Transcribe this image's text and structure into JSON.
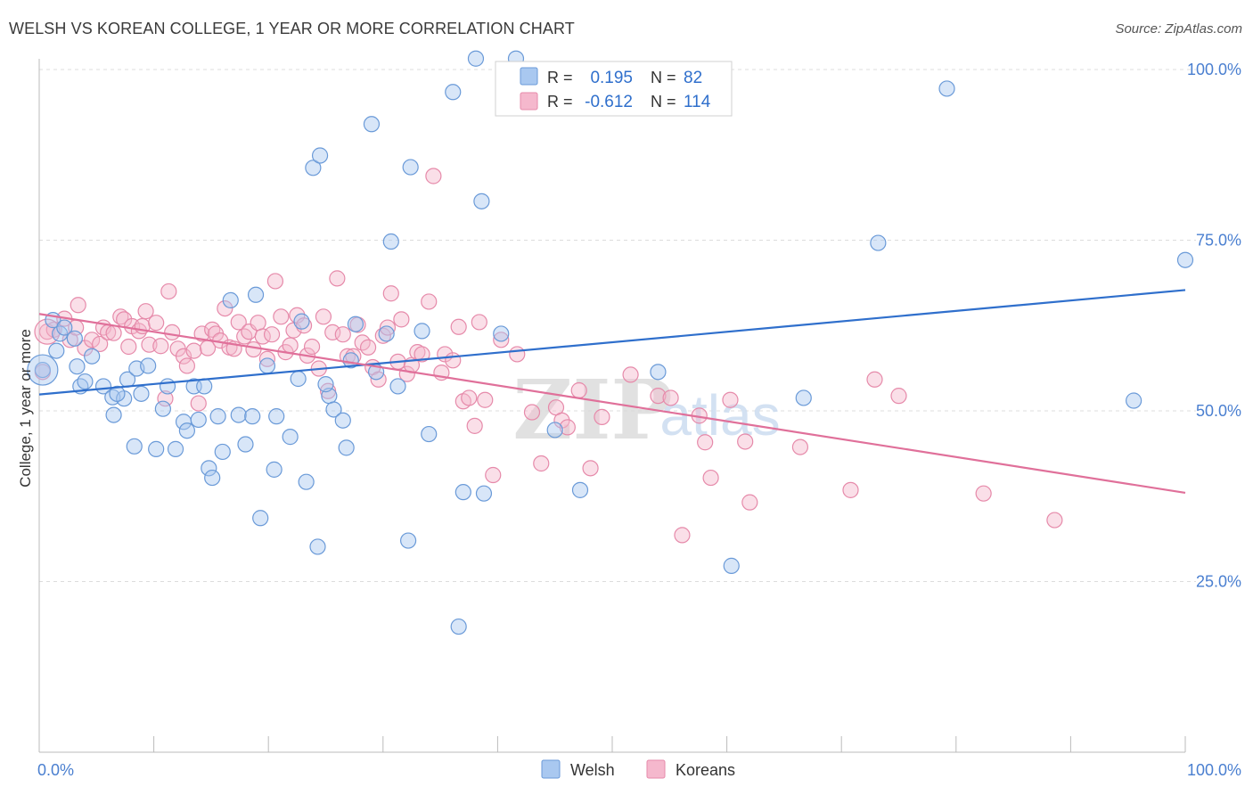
{
  "title": "WELSH VS KOREAN COLLEGE, 1 YEAR OR MORE CORRELATION CHART",
  "source": "Source: ZipAtlas.com",
  "watermark": {
    "zip": "ZIP",
    "atlas": "atlas"
  },
  "colors": {
    "welsh_fill": "#a9c8f0",
    "welsh_stroke": "#6a9ad8",
    "welsh_line": "#2f6fcc",
    "korean_fill": "#f5b8cd",
    "korean_stroke": "#e68aaa",
    "korean_line": "#e0709a",
    "tick_label": "#4a7fd0",
    "grid": "#dcdcdc"
  },
  "legend_box": {
    "rows": [
      {
        "r_label": "R =",
        "r_value": "0.195",
        "n_label": "N =",
        "n_value": "82",
        "series": "welsh"
      },
      {
        "r_label": "R =",
        "r_value": "-0.612",
        "n_label": "N =",
        "n_value": "114",
        "series": "korean"
      }
    ]
  },
  "chart_data": {
    "type": "scatter",
    "title": "WELSH VS KOREAN COLLEGE, 1 YEAR OR MORE CORRELATION CHART",
    "xlabel": "",
    "ylabel": "College, 1 year or more",
    "xlim": [
      0,
      100
    ],
    "ylim": [
      0,
      100
    ],
    "x_tick_labels": [
      {
        "value": 0,
        "label": "0.0%"
      },
      {
        "value": 100,
        "label": "100.0%"
      }
    ],
    "y_tick_labels": [
      {
        "value": 25,
        "label": "25.0%"
      },
      {
        "value": 50,
        "label": "50.0%"
      },
      {
        "value": 75,
        "label": "75.0%"
      },
      {
        "value": 100,
        "label": "100.0%"
      }
    ],
    "grid": true,
    "legend_position": "bottom-center",
    "series": [
      {
        "name": "Welsh",
        "r": 0.195,
        "n": 82,
        "trend": {
          "x": [
            0,
            100
          ],
          "y": [
            52.4,
            67.7
          ]
        },
        "points": [
          [
            0.3,
            56.0
          ],
          [
            1.2,
            63.3
          ],
          [
            1.8,
            61.3
          ],
          [
            2.2,
            62.2
          ],
          [
            3.1,
            60.6
          ],
          [
            3.3,
            56.5
          ],
          [
            3.6,
            53.6
          ],
          [
            4.0,
            54.3
          ],
          [
            4.6,
            58.0
          ],
          [
            5.6,
            53.6
          ],
          [
            6.4,
            52.0
          ],
          [
            6.5,
            49.4
          ],
          [
            7.4,
            51.8
          ],
          [
            7.7,
            54.6
          ],
          [
            8.3,
            44.8
          ],
          [
            8.5,
            56.2
          ],
          [
            8.9,
            52.5
          ],
          [
            9.5,
            56.6
          ],
          [
            10.2,
            44.4
          ],
          [
            10.8,
            50.3
          ],
          [
            11.2,
            53.6
          ],
          [
            11.9,
            44.4
          ],
          [
            12.6,
            48.4
          ],
          [
            12.9,
            47.1
          ],
          [
            13.5,
            53.6
          ],
          [
            14.4,
            53.6
          ],
          [
            14.8,
            41.6
          ],
          [
            15.1,
            40.2
          ],
          [
            15.6,
            49.2
          ],
          [
            16.0,
            44.0
          ],
          [
            16.7,
            66.2
          ],
          [
            17.4,
            49.4
          ],
          [
            18.0,
            45.1
          ],
          [
            18.6,
            49.2
          ],
          [
            18.9,
            67.0
          ],
          [
            19.3,
            34.3
          ],
          [
            19.9,
            56.6
          ],
          [
            20.5,
            41.4
          ],
          [
            20.7,
            49.2
          ],
          [
            21.9,
            46.2
          ],
          [
            22.6,
            54.7
          ],
          [
            22.9,
            63.1
          ],
          [
            23.3,
            39.6
          ],
          [
            23.9,
            85.6
          ],
          [
            24.3,
            30.1
          ],
          [
            24.5,
            87.4
          ],
          [
            25.3,
            52.2
          ],
          [
            25.7,
            50.2
          ],
          [
            26.5,
            48.6
          ],
          [
            26.8,
            44.6
          ],
          [
            27.2,
            57.4
          ],
          [
            27.6,
            62.7
          ],
          [
            29.0,
            92.0
          ],
          [
            29.4,
            55.7
          ],
          [
            30.3,
            61.3
          ],
          [
            30.7,
            74.8
          ],
          [
            31.3,
            53.6
          ],
          [
            32.2,
            31.0
          ],
          [
            32.4,
            85.7
          ],
          [
            33.4,
            61.7
          ],
          [
            34.0,
            46.6
          ],
          [
            36.1,
            96.7
          ],
          [
            36.6,
            18.4
          ],
          [
            37.0,
            38.1
          ],
          [
            38.1,
            101.6
          ],
          [
            38.6,
            80.7
          ],
          [
            38.8,
            37.9
          ],
          [
            40.3,
            61.3
          ],
          [
            41.6,
            101.6
          ],
          [
            45.0,
            47.2
          ],
          [
            47.2,
            38.4
          ],
          [
            54.0,
            55.7
          ],
          [
            60.4,
            27.3
          ],
          [
            66.7,
            51.9
          ],
          [
            73.2,
            74.6
          ],
          [
            79.2,
            97.2
          ],
          [
            95.5,
            51.5
          ],
          [
            100.0,
            72.1
          ],
          [
            1.5,
            58.8
          ],
          [
            25.0,
            53.9
          ],
          [
            13.9,
            48.7
          ],
          [
            6.8,
            52.5
          ]
        ]
      },
      {
        "name": "Koreans",
        "r": -0.612,
        "n": 114,
        "trend": {
          "x": [
            0,
            100
          ],
          "y": [
            64.2,
            38.0
          ]
        },
        "points": [
          [
            0.3,
            55.7
          ],
          [
            0.7,
            61.6
          ],
          [
            1.3,
            61.9
          ],
          [
            2.2,
            63.5
          ],
          [
            2.7,
            60.4
          ],
          [
            3.2,
            62.2
          ],
          [
            3.4,
            65.5
          ],
          [
            4.0,
            59.2
          ],
          [
            4.6,
            60.4
          ],
          [
            5.3,
            59.8
          ],
          [
            5.6,
            62.2
          ],
          [
            6.0,
            61.5
          ],
          [
            6.5,
            61.4
          ],
          [
            7.1,
            63.8
          ],
          [
            7.4,
            63.4
          ],
          [
            7.8,
            59.4
          ],
          [
            8.1,
            62.4
          ],
          [
            8.7,
            61.7
          ],
          [
            9.0,
            62.4
          ],
          [
            9.3,
            64.6
          ],
          [
            9.6,
            59.7
          ],
          [
            10.2,
            62.9
          ],
          [
            10.6,
            59.5
          ],
          [
            11.0,
            51.8
          ],
          [
            11.3,
            67.5
          ],
          [
            11.6,
            61.5
          ],
          [
            12.1,
            59.1
          ],
          [
            12.6,
            58.0
          ],
          [
            12.9,
            56.6
          ],
          [
            13.5,
            58.8
          ],
          [
            13.9,
            51.1
          ],
          [
            14.2,
            61.3
          ],
          [
            14.7,
            59.2
          ],
          [
            15.1,
            61.9
          ],
          [
            15.4,
            61.3
          ],
          [
            15.8,
            60.3
          ],
          [
            16.2,
            65.0
          ],
          [
            16.6,
            59.3
          ],
          [
            17.0,
            59.1
          ],
          [
            17.4,
            63.0
          ],
          [
            17.9,
            60.9
          ],
          [
            18.3,
            61.6
          ],
          [
            18.7,
            59.0
          ],
          [
            19.1,
            62.9
          ],
          [
            19.5,
            60.9
          ],
          [
            19.9,
            57.6
          ],
          [
            20.3,
            61.2
          ],
          [
            20.6,
            69.0
          ],
          [
            21.1,
            63.8
          ],
          [
            21.5,
            58.6
          ],
          [
            21.9,
            59.6
          ],
          [
            22.2,
            61.8
          ],
          [
            22.5,
            64.0
          ],
          [
            23.1,
            62.5
          ],
          [
            23.4,
            58.1
          ],
          [
            23.8,
            59.4
          ],
          [
            24.4,
            56.2
          ],
          [
            24.8,
            63.8
          ],
          [
            25.2,
            52.9
          ],
          [
            25.6,
            61.5
          ],
          [
            26.0,
            69.4
          ],
          [
            26.5,
            61.2
          ],
          [
            26.9,
            58.0
          ],
          [
            27.4,
            58.0
          ],
          [
            27.8,
            62.6
          ],
          [
            28.2,
            60.0
          ],
          [
            28.7,
            59.3
          ],
          [
            29.1,
            56.4
          ],
          [
            29.6,
            54.6
          ],
          [
            30.0,
            61.0
          ],
          [
            30.4,
            62.2
          ],
          [
            30.7,
            67.2
          ],
          [
            31.3,
            57.2
          ],
          [
            31.6,
            63.4
          ],
          [
            32.1,
            55.4
          ],
          [
            32.5,
            56.7
          ],
          [
            33.0,
            58.6
          ],
          [
            33.4,
            58.3
          ],
          [
            34.0,
            66.0
          ],
          [
            34.4,
            84.4
          ],
          [
            35.1,
            55.6
          ],
          [
            35.4,
            58.3
          ],
          [
            36.1,
            57.4
          ],
          [
            36.6,
            62.3
          ],
          [
            37.0,
            51.4
          ],
          [
            37.5,
            51.9
          ],
          [
            38.0,
            47.8
          ],
          [
            38.4,
            63.0
          ],
          [
            38.9,
            51.6
          ],
          [
            39.6,
            40.6
          ],
          [
            40.3,
            60.4
          ],
          [
            41.7,
            58.3
          ],
          [
            43.0,
            49.8
          ],
          [
            43.8,
            42.3
          ],
          [
            45.1,
            50.5
          ],
          [
            45.6,
            48.6
          ],
          [
            46.1,
            47.6
          ],
          [
            47.1,
            53.0
          ],
          [
            48.1,
            41.6
          ],
          [
            49.1,
            49.1
          ],
          [
            51.6,
            55.3
          ],
          [
            54.0,
            52.2
          ],
          [
            55.1,
            51.9
          ],
          [
            56.1,
            31.8
          ],
          [
            57.6,
            49.3
          ],
          [
            58.1,
            45.4
          ],
          [
            58.6,
            40.2
          ],
          [
            60.3,
            51.6
          ],
          [
            61.6,
            45.5
          ],
          [
            62.0,
            36.6
          ],
          [
            66.4,
            44.7
          ],
          [
            70.8,
            38.4
          ],
          [
            72.9,
            54.6
          ],
          [
            75.0,
            52.2
          ],
          [
            82.4,
            37.9
          ],
          [
            88.6,
            34.0
          ]
        ]
      }
    ]
  },
  "legend": [
    {
      "label": "Welsh",
      "series": "welsh"
    },
    {
      "label": "Koreans",
      "series": "korean"
    }
  ]
}
